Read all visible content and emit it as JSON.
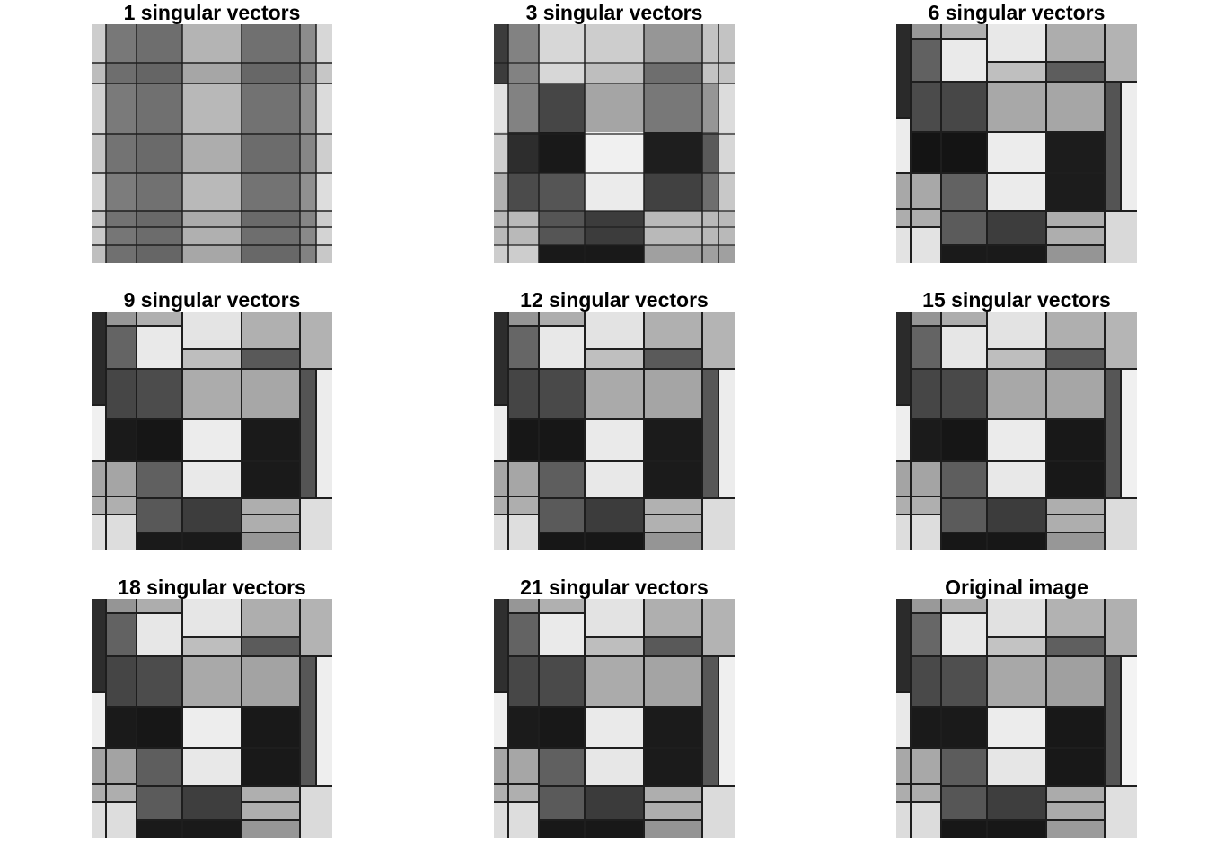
{
  "figure": {
    "panels": [
      {
        "title": "1 singular vectors",
        "rank": 1
      },
      {
        "title": "3 singular vectors",
        "rank": 3
      },
      {
        "title": "6 singular vectors",
        "rank": 6
      },
      {
        "title": "9 singular vectors",
        "rank": 9
      },
      {
        "title": "12 singular vectors",
        "rank": 12
      },
      {
        "title": "15 singular vectors",
        "rank": 15
      },
      {
        "title": "18 singular vectors",
        "rank": 18
      },
      {
        "title": "21 singular vectors",
        "rank": 21
      },
      {
        "title": "Original image",
        "rank": null
      }
    ]
  },
  "colors": {
    "background": "#ffffff",
    "title_text": "#000000",
    "grid_lines": "#1e1e1e"
  }
}
